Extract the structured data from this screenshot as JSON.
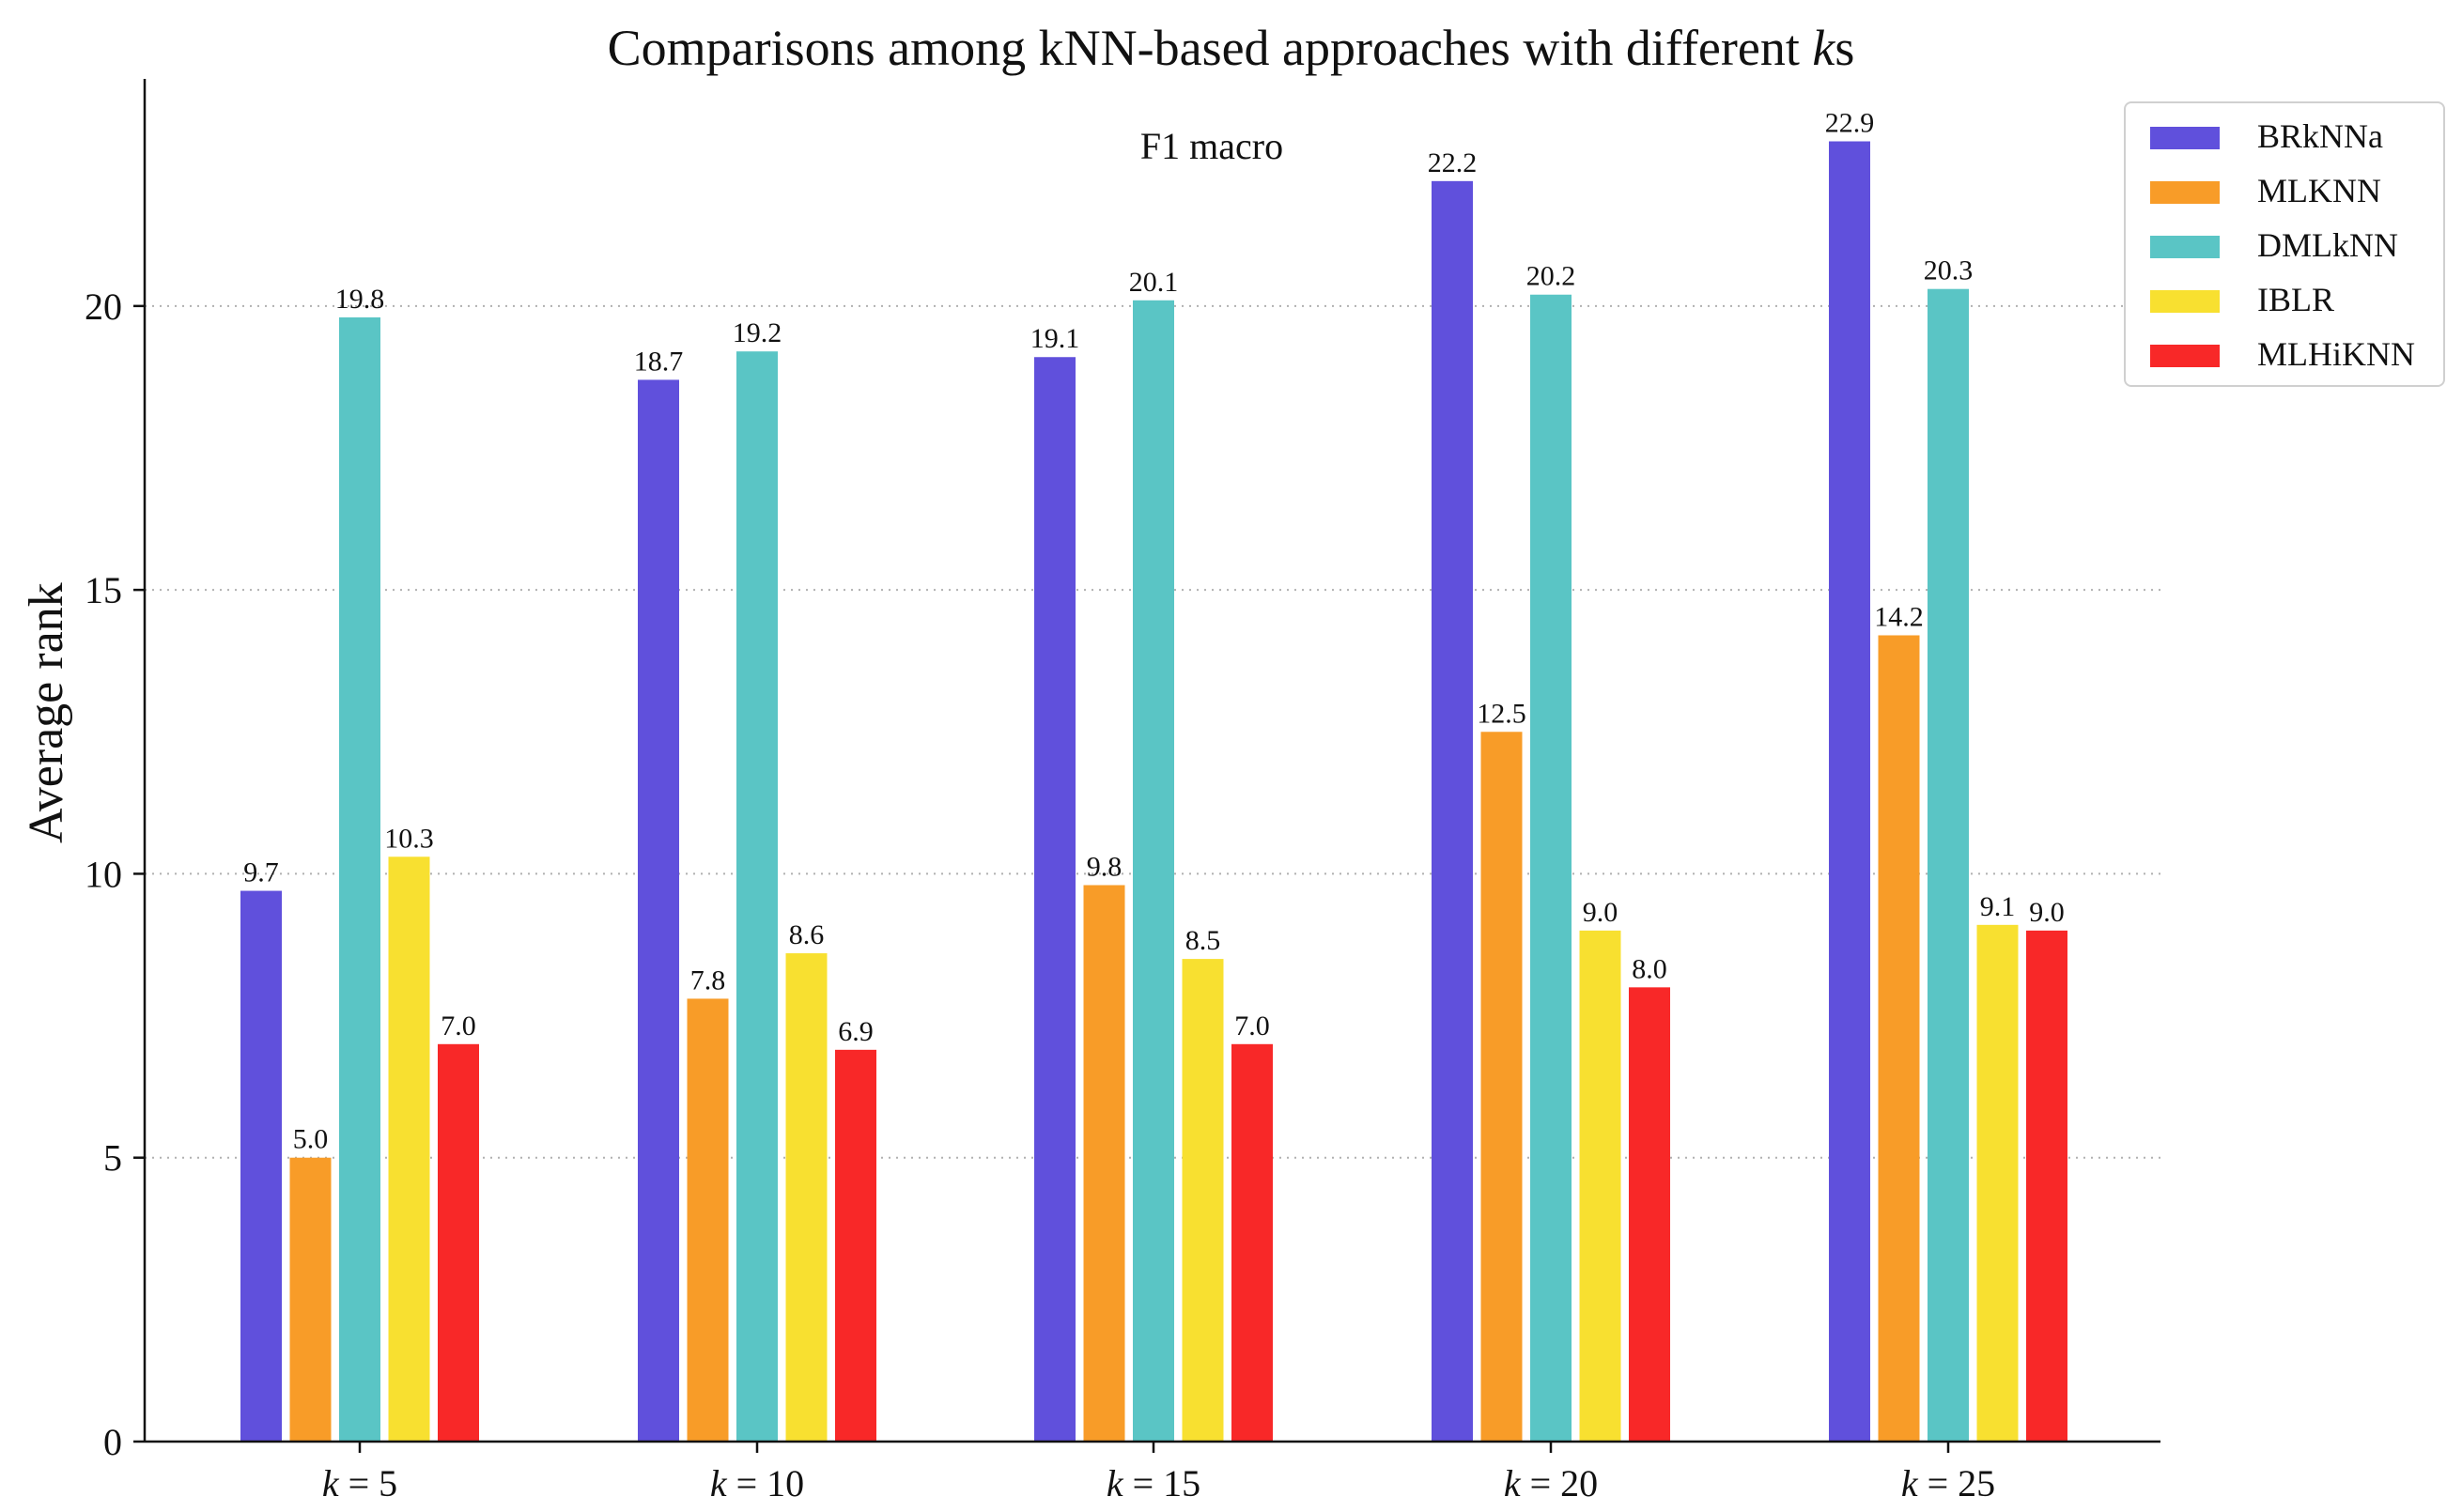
{
  "chart_data": {
    "type": "bar",
    "title": "Comparisons among kNN-based approaches with different ks",
    "title_main": "Comparisons among kNN-based approaches with different ",
    "title_italic": "k",
    "title_suffix": "s",
    "subtitle": "F1 macro",
    "xlabel": "",
    "ylabel": "Average rank",
    "ylim": [
      0,
      24
    ],
    "yticks": [
      0,
      5,
      10,
      15,
      20
    ],
    "categories": [
      "k = 5",
      "k = 10",
      "k = 15",
      "k = 20",
      "k = 25"
    ],
    "category_k_values": [
      "5",
      "10",
      "15",
      "20",
      "25"
    ],
    "grid": "horizontal dotted",
    "legend_position": "top-right",
    "series": [
      {
        "name": "BRkNNa",
        "color": "#6050dc",
        "values": [
          9.7,
          18.7,
          19.1,
          22.2,
          22.9
        ]
      },
      {
        "name": "MLKNN",
        "color": "#f89c28",
        "values": [
          5.0,
          7.8,
          9.8,
          12.5,
          14.2
        ]
      },
      {
        "name": "DMLkNN",
        "color": "#5ac5c5",
        "values": [
          19.8,
          19.2,
          20.1,
          20.2,
          20.3
        ]
      },
      {
        "name": "IBLR",
        "color": "#f8e030",
        "values": [
          10.3,
          8.6,
          8.5,
          9.0,
          9.1
        ]
      },
      {
        "name": "MLHiKNN",
        "color": "#f82828",
        "values": [
          7.0,
          6.9,
          7.0,
          8.0,
          9.0
        ]
      }
    ]
  }
}
